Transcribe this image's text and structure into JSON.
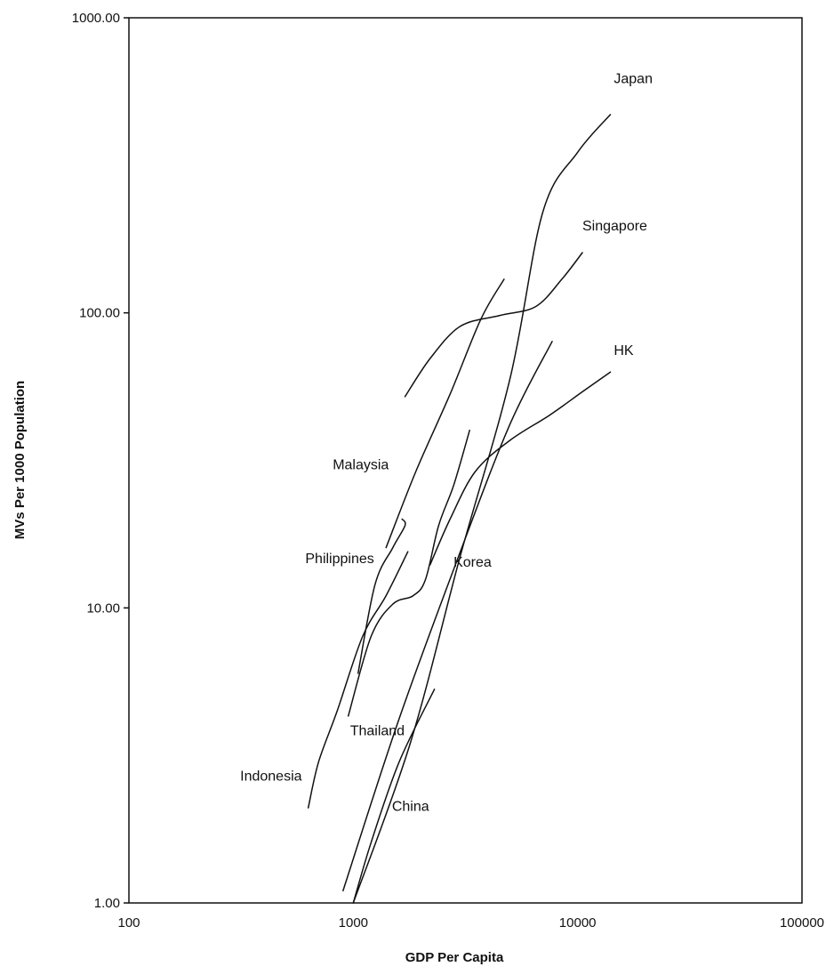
{
  "chart_data": {
    "type": "line",
    "title": "",
    "xlabel": "GDP Per Capita",
    "ylabel": "MVs Per 1000 Population",
    "x_scale": "log",
    "y_scale": "log",
    "xlim": [
      100,
      100000
    ],
    "ylim": [
      1,
      1000
    ],
    "x_ticks": [
      100,
      1000,
      10000,
      100000
    ],
    "x_tick_labels": [
      "100",
      "1000",
      "10000",
      "100000"
    ],
    "y_ticks": [
      1,
      10,
      100,
      1000
    ],
    "y_tick_labels": [
      "1.00",
      "10.00",
      "100.00",
      "1000.00"
    ],
    "grid": false,
    "legend": "none (series labeled directly on chart)",
    "line_color": "#111111",
    "series": [
      {
        "name": "Japan",
        "x": [
          1000,
          1800,
          3000,
          5000,
          7000,
          10000,
          14000
        ],
        "y": [
          1,
          3.5,
          15,
          60,
          220,
          350,
          470
        ]
      },
      {
        "name": "Singapore",
        "x": [
          1700,
          2200,
          3000,
          4500,
          6500,
          8500,
          10500
        ],
        "y": [
          52,
          70,
          90,
          98,
          105,
          130,
          160
        ]
      },
      {
        "name": "HK",
        "x": [
          2200,
          2700,
          3500,
          5000,
          7500,
          10500,
          14000
        ],
        "y": [
          14,
          20,
          29,
          37,
          45,
          54,
          63
        ]
      },
      {
        "name": "Korea",
        "x": [
          900,
          1600,
          3000,
          5000,
          7700
        ],
        "y": [
          1.1,
          4.2,
          15.5,
          42,
          80
        ]
      },
      {
        "name": "Malaysia",
        "x": [
          1400,
          1900,
          2700,
          3700,
          4700
        ],
        "y": [
          16,
          29,
          53,
          95,
          130
        ]
      },
      {
        "name": "Philippines",
        "x": [
          1050,
          1250,
          1500,
          1700,
          1650
        ],
        "y": [
          6,
          12,
          16,
          19,
          20
        ]
      },
      {
        "name": "Thailand",
        "x": [
          950,
          1200,
          1500,
          1850,
          2100,
          2400,
          2800,
          3300
        ],
        "y": [
          4.3,
          8,
          10.3,
          11,
          12.5,
          19,
          26,
          40
        ]
      },
      {
        "name": "Indonesia",
        "x": [
          630,
          700,
          850,
          1100,
          1400,
          1750
        ],
        "y": [
          2.1,
          3,
          4.5,
          8,
          11,
          15.5
        ]
      },
      {
        "name": "China",
        "x": [
          1000,
          1200,
          1600,
          2300
        ],
        "y": [
          1,
          1.6,
          3,
          5.3
        ]
      }
    ]
  }
}
